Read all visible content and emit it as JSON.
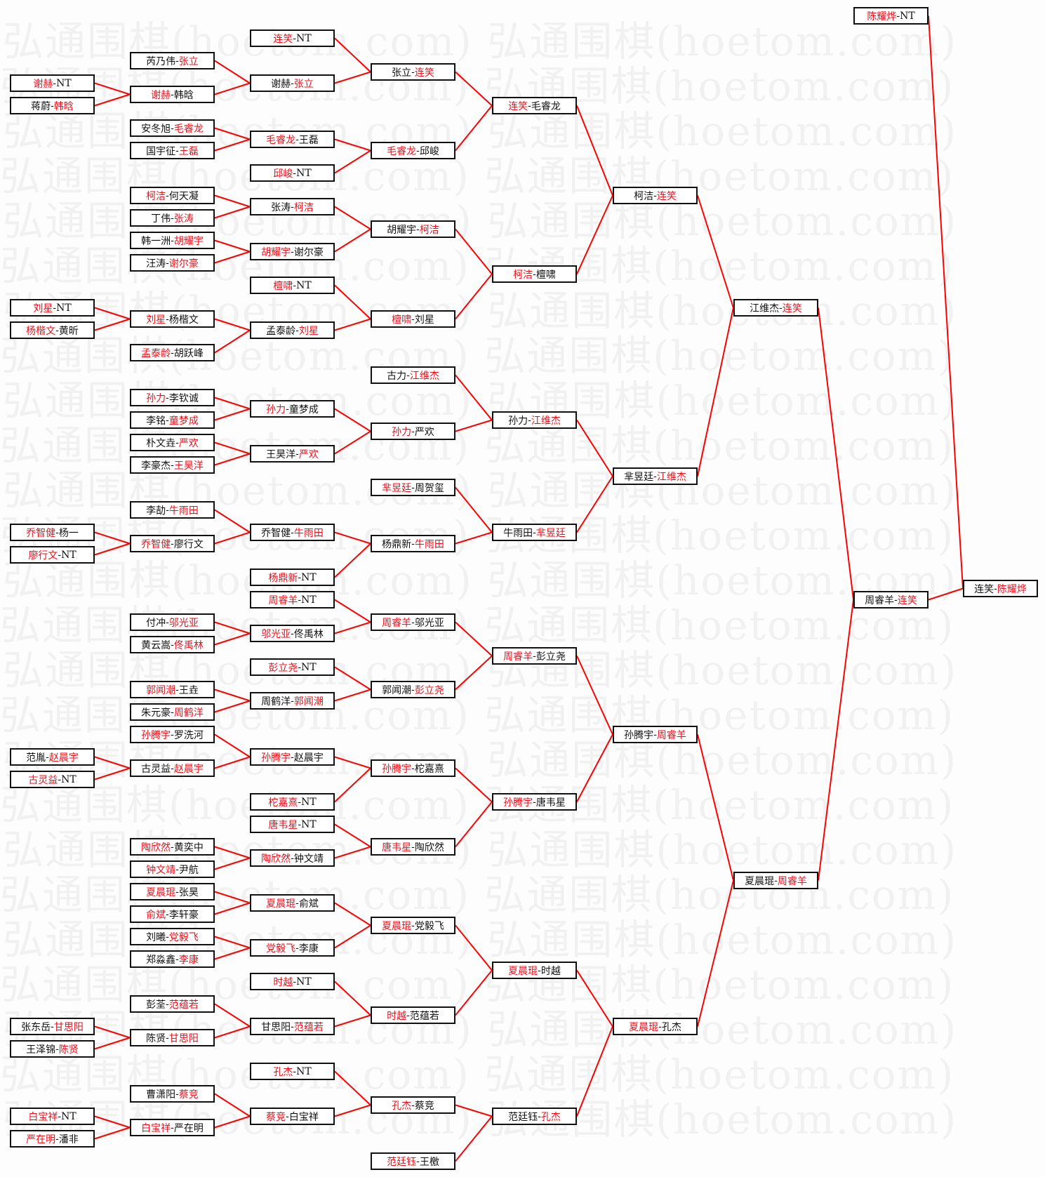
{
  "watermark": "弘通围棋(hoetom.com)",
  "colors": {
    "winner": "#e8101c",
    "line": "#ff0000",
    "box_border": "#111111"
  },
  "separator": "-",
  "matches": [
    {
      "p1": "谢赫",
      "p2": "NT",
      "winner": 1
    },
    {
      "p1": "蒋蔚",
      "p2": "韩晗",
      "winner": 2
    },
    {
      "p1": "刘星",
      "p2": "NT",
      "winner": 1
    },
    {
      "p1": "杨楷文",
      "p2": "黄昕",
      "winner": 1
    },
    {
      "p1": "乔智健",
      "p2": "杨一",
      "winner": 1
    },
    {
      "p1": "廖行文",
      "p2": "NT",
      "winner": 1
    },
    {
      "p1": "范胤",
      "p2": "赵晨宇",
      "winner": 2
    },
    {
      "p1": "古灵益",
      "p2": "NT",
      "winner": 1
    },
    {
      "p1": "张东岳",
      "p2": "甘思阳",
      "winner": 2
    },
    {
      "p1": "王泽锦",
      "p2": "陈贤",
      "winner": 2
    },
    {
      "p1": "白宝祥",
      "p2": "NT",
      "winner": 1
    },
    {
      "p1": "严在明",
      "p2": "潘非",
      "winner": 1
    },
    {
      "p1": "芮乃伟",
      "p2": "张立",
      "winner": 2
    },
    {
      "p1": "谢赫",
      "p2": "韩晗",
      "winner": 1,
      "from": [
        0,
        1
      ]
    },
    {
      "p1": "安冬旭",
      "p2": "毛睿龙",
      "winner": 2
    },
    {
      "p1": "国宇征",
      "p2": "王磊",
      "winner": 2
    },
    {
      "p1": "柯洁",
      "p2": "何天凝",
      "winner": 1
    },
    {
      "p1": "丁伟",
      "p2": "张涛",
      "winner": 2
    },
    {
      "p1": "韩一洲",
      "p2": "胡耀宇",
      "winner": 2
    },
    {
      "p1": "汪涛",
      "p2": "谢尔豪",
      "winner": 2
    },
    {
      "p1": "刘星",
      "p2": "杨楷文",
      "winner": 1,
      "from": [
        2,
        3
      ]
    },
    {
      "p1": "孟泰龄",
      "p2": "胡跃峰",
      "winner": 1
    },
    {
      "p1": "孙力",
      "p2": "李钦诚",
      "winner": 1
    },
    {
      "p1": "李铭",
      "p2": "童梦成",
      "winner": 2
    },
    {
      "p1": "朴文垚",
      "p2": "严欢",
      "winner": 2
    },
    {
      "p1": "李豪杰",
      "p2": "王昊洋",
      "winner": 2
    },
    {
      "p1": "李劼",
      "p2": "牛雨田",
      "winner": 2
    },
    {
      "p1": "乔智健",
      "p2": "廖行文",
      "winner": 1,
      "from": [
        4,
        5
      ]
    },
    {
      "p1": "付冲",
      "p2": "邬光亚",
      "winner": 2
    },
    {
      "p1": "黄云嵩",
      "p2": "佟禹林",
      "winner": 2
    },
    {
      "p1": "郭闻潮",
      "p2": "王垚",
      "winner": 1
    },
    {
      "p1": "朱元豪",
      "p2": "周鹤洋",
      "winner": 2
    },
    {
      "p1": "孙腾宇",
      "p2": "罗洗河",
      "winner": 1
    },
    {
      "p1": "古灵益",
      "p2": "赵晨宇",
      "winner": 2,
      "from": [
        6,
        7
      ]
    },
    {
      "p1": "陶欣然",
      "p2": "黄奕中",
      "winner": 1
    },
    {
      "p1": "钟文靖",
      "p2": "尹航",
      "winner": 1
    },
    {
      "p1": "夏晨琨",
      "p2": "张昊",
      "winner": 1
    },
    {
      "p1": "俞斌",
      "p2": "李轩豪",
      "winner": 1
    },
    {
      "p1": "刘曦",
      "p2": "党毅飞",
      "winner": 2
    },
    {
      "p1": "郑淼鑫",
      "p2": "李康",
      "winner": 2
    },
    {
      "p1": "彭荃",
      "p2": "范蕴若",
      "winner": 2
    },
    {
      "p1": "陈贤",
      "p2": "甘思阳",
      "winner": 2,
      "from": [
        8,
        9
      ]
    },
    {
      "p1": "曹潇阳",
      "p2": "蔡竞",
      "winner": 2
    },
    {
      "p1": "白宝祥",
      "p2": "严在明",
      "winner": 1,
      "from": [
        10,
        11
      ]
    },
    {
      "p1": "连笑",
      "p2": "NT",
      "winner": 1
    },
    {
      "p1": "谢赫",
      "p2": "张立",
      "winner": 2,
      "from": [
        12,
        13
      ]
    },
    {
      "p1": "毛睿龙",
      "p2": "王磊",
      "winner": 1,
      "from": [
        14,
        15
      ]
    },
    {
      "p1": "邱峻",
      "p2": "NT",
      "winner": 1
    },
    {
      "p1": "张涛",
      "p2": "柯洁",
      "winner": 2,
      "from": [
        16,
        17
      ]
    },
    {
      "p1": "胡耀宇",
      "p2": "谢尔豪",
      "winner": 1,
      "from": [
        18,
        19
      ]
    },
    {
      "p1": "檀啸",
      "p2": "NT",
      "winner": 1
    },
    {
      "p1": "孟泰龄",
      "p2": "刘星",
      "winner": 2,
      "from": [
        20,
        21
      ]
    },
    {
      "p1": "孙力",
      "p2": "童梦成",
      "winner": 1,
      "from": [
        22,
        23
      ]
    },
    {
      "p1": "王昊洋",
      "p2": "严欢",
      "winner": 2,
      "from": [
        24,
        25
      ]
    },
    {
      "p1": "乔智健",
      "p2": "牛雨田",
      "winner": 2,
      "from": [
        26,
        27
      ]
    },
    {
      "p1": "杨鼎新",
      "p2": "NT",
      "winner": 1
    },
    {
      "p1": "周睿羊",
      "p2": "NT",
      "winner": 1
    },
    {
      "p1": "邬光亚",
      "p2": "佟禹林",
      "winner": 1,
      "from": [
        28,
        29
      ]
    },
    {
      "p1": "彭立尧",
      "p2": "NT",
      "winner": 1
    },
    {
      "p1": "周鹤洋",
      "p2": "郭闻潮",
      "winner": 2,
      "from": [
        30,
        31
      ]
    },
    {
      "p1": "孙腾宇",
      "p2": "赵晨宇",
      "winner": 1,
      "from": [
        32,
        33
      ]
    },
    {
      "p1": "柁嘉熹",
      "p2": "NT",
      "winner": 1
    },
    {
      "p1": "唐韦星",
      "p2": "NT",
      "winner": 1
    },
    {
      "p1": "陶欣然",
      "p2": "钟文靖",
      "winner": 1,
      "from": [
        34,
        35
      ]
    },
    {
      "p1": "夏晨琨",
      "p2": "俞斌",
      "winner": 1,
      "from": [
        36,
        37
      ]
    },
    {
      "p1": "党毅飞",
      "p2": "李康",
      "winner": 1,
      "from": [
        38,
        39
      ]
    },
    {
      "p1": "时越",
      "p2": "NT",
      "winner": 1
    },
    {
      "p1": "甘思阳",
      "p2": "范蕴若",
      "winner": 2,
      "from": [
        40,
        41
      ]
    },
    {
      "p1": "孔杰",
      "p2": "NT",
      "winner": 1
    },
    {
      "p1": "蔡竞",
      "p2": "白宝祥",
      "winner": 1,
      "from": [
        42,
        43
      ]
    },
    {
      "p1": "张立",
      "p2": "连笑",
      "winner": 2,
      "from": [
        44,
        45
      ]
    },
    {
      "p1": "毛睿龙",
      "p2": "邱峻",
      "winner": 1,
      "from": [
        46,
        47
      ]
    },
    {
      "p1": "胡耀宇",
      "p2": "柯洁",
      "winner": 2,
      "from": [
        48,
        49
      ]
    },
    {
      "p1": "檀啸",
      "p2": "刘星",
      "winner": 1,
      "from": [
        50,
        51
      ]
    },
    {
      "p1": "古力",
      "p2": "江维杰",
      "winner": 2
    },
    {
      "p1": "孙力",
      "p2": "严欢",
      "winner": 1,
      "from": [
        52,
        53
      ]
    },
    {
      "p1": "芈昱廷",
      "p2": "周贺玺",
      "winner": 1
    },
    {
      "p1": "杨鼎新",
      "p2": "牛雨田",
      "winner": 2,
      "from": [
        54,
        55
      ]
    },
    {
      "p1": "周睿羊",
      "p2": "邬光亚",
      "winner": 1,
      "from": [
        56,
        57
      ]
    },
    {
      "p1": "郭闻潮",
      "p2": "彭立尧",
      "winner": 2,
      "from": [
        58,
        59
      ]
    },
    {
      "p1": "孙腾宇",
      "p2": "柁嘉熹",
      "winner": 1,
      "from": [
        60,
        61
      ]
    },
    {
      "p1": "唐韦星",
      "p2": "陶欣然",
      "winner": 1,
      "from": [
        62,
        63
      ]
    },
    {
      "p1": "夏晨琨",
      "p2": "党毅飞",
      "winner": 1,
      "from": [
        64,
        65
      ]
    },
    {
      "p1": "时越",
      "p2": "范蕴若",
      "winner": 1,
      "from": [
        66,
        67
      ]
    },
    {
      "p1": "孔杰",
      "p2": "蔡竞",
      "winner": 1,
      "from": [
        68,
        69
      ]
    },
    {
      "p1": "范廷钰",
      "p2": "王檄",
      "winner": 1
    },
    {
      "p1": "连笑",
      "p2": "毛睿龙",
      "winner": 1,
      "from": [
        70,
        71
      ]
    },
    {
      "p1": "柯洁",
      "p2": "檀啸",
      "winner": 1,
      "from": [
        72,
        73
      ]
    },
    {
      "p1": "孙力",
      "p2": "江维杰",
      "winner": 2,
      "from": [
        74,
        75
      ]
    },
    {
      "p1": "牛雨田",
      "p2": "芈昱廷",
      "winner": 2,
      "from": [
        76,
        77
      ]
    },
    {
      "p1": "周睿羊",
      "p2": "彭立尧",
      "winner": 1,
      "from": [
        78,
        79
      ]
    },
    {
      "p1": "孙腾宇",
      "p2": "唐韦星",
      "winner": 1,
      "from": [
        80,
        81
      ]
    },
    {
      "p1": "夏晨琨",
      "p2": "时越",
      "winner": 1,
      "from": [
        82,
        83
      ]
    },
    {
      "p1": "范廷钰",
      "p2": "孔杰",
      "winner": 2,
      "from": [
        84,
        85
      ]
    },
    {
      "p1": "柯洁",
      "p2": "连笑",
      "winner": 2,
      "from": [
        86,
        87
      ]
    },
    {
      "p1": "芈昱廷",
      "p2": "江维杰",
      "winner": 2,
      "from": [
        88,
        89
      ]
    },
    {
      "p1": "孙腾宇",
      "p2": "周睿羊",
      "winner": 2,
      "from": [
        90,
        91
      ]
    },
    {
      "p1": "夏晨琨",
      "p2": "孔杰",
      "winner": 1,
      "from": [
        92,
        93
      ]
    },
    {
      "p1": "江维杰",
      "p2": "连笑",
      "winner": 2,
      "from": [
        94,
        95
      ]
    },
    {
      "p1": "夏晨琨",
      "p2": "周睿羊",
      "winner": 2,
      "from": [
        96,
        97
      ]
    },
    {
      "p1": "陈耀烨",
      "p2": "NT",
      "winner": 1
    },
    {
      "p1": "周睿羊",
      "p2": "连笑",
      "winner": 2,
      "from": [
        98,
        99
      ]
    },
    {
      "p1": "连笑",
      "p2": "陈耀烨",
      "winner": 2,
      "from": [
        100,
        101
      ]
    }
  ]
}
